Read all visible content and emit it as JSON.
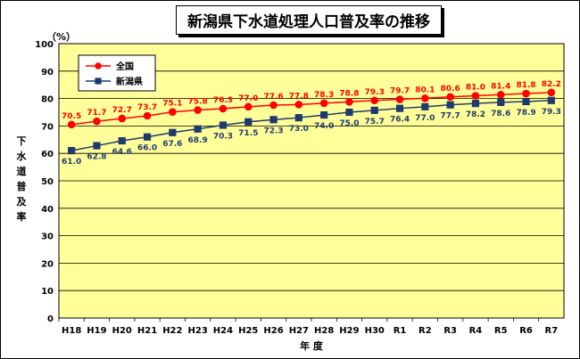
{
  "chart_data": {
    "type": "line",
    "title": "新潟県下水道処理人口普及率の推移",
    "ylabel": "下水道普及率",
    "yunit": "（%）",
    "xlabel": "年 度",
    "ylim": [
      0,
      100
    ],
    "yticks": [
      0,
      10,
      20,
      30,
      40,
      50,
      60,
      70,
      80,
      90,
      100
    ],
    "grid": true,
    "legend_position": "top-left",
    "categories": [
      "H18",
      "H19",
      "H20",
      "H21",
      "H22",
      "H23",
      "H24",
      "H25",
      "H26",
      "H27",
      "H28",
      "H29",
      "H30",
      "R1",
      "R2",
      "R3",
      "R4",
      "R5",
      "R6",
      "R7"
    ],
    "series": [
      {
        "name": "全国",
        "color": "#ff0000",
        "marker": "circle",
        "label_color": "#ff0000",
        "label_position": "above",
        "values": [
          70.5,
          71.7,
          72.7,
          73.7,
          75.1,
          75.8,
          76.3,
          77.0,
          77.6,
          77.8,
          78.3,
          78.8,
          79.3,
          79.7,
          80.1,
          80.6,
          81.0,
          81.4,
          81.8,
          82.2
        ]
      },
      {
        "name": "新潟県",
        "color": "#1f3a6e",
        "marker": "square",
        "label_color": "#1f3a6e",
        "label_position": "below",
        "values": [
          61.0,
          62.8,
          64.6,
          66.0,
          67.6,
          68.9,
          70.3,
          71.5,
          72.3,
          73.0,
          74.0,
          75.0,
          75.7,
          76.4,
          77.0,
          77.7,
          78.2,
          78.6,
          78.9,
          79.3
        ]
      }
    ]
  },
  "colors": {
    "plot_background": "#ffff99",
    "grid": "#000000"
  }
}
